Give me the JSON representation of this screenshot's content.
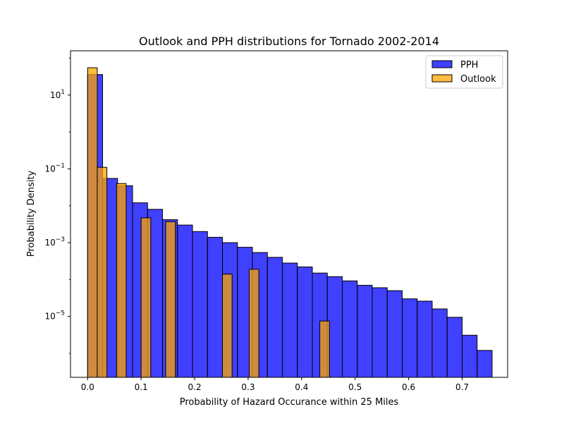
{
  "chart_data": {
    "type": "bar",
    "title": "Outlook and PPH distributions for Tornado 2002-2014",
    "xlabel": "Probability of Hazard Occurance within 25 Miles",
    "ylabel": "Probability Density",
    "xlim": [
      -0.032,
      0.785
    ],
    "ylim_log10": [
      -6.65,
      2.2
    ],
    "yscale": "log",
    "x_ticks": [
      0.0,
      0.1,
      0.2,
      0.3,
      0.4,
      0.5,
      0.6,
      0.7
    ],
    "x_tick_labels": [
      "0.0",
      "0.1",
      "0.2",
      "0.3",
      "0.4",
      "0.5",
      "0.6",
      "0.7"
    ],
    "y_ticks": [
      {
        "exp": 1,
        "mantissa": "10",
        "sup": "1"
      },
      {
        "exp": -1,
        "mantissa": "10",
        "sup": "−1"
      },
      {
        "exp": -3,
        "mantissa": "10",
        "sup": "−3"
      },
      {
        "exp": -5,
        "mantissa": "10",
        "sup": "−5"
      }
    ],
    "legend_position": "top-right",
    "series": [
      {
        "name": "PPH",
        "color": "#0000ff",
        "alpha": 0.75,
        "bin_width": 0.028,
        "bins": [
          {
            "x0": 0.0,
            "value": 36.0
          },
          {
            "x0": 0.028,
            "value": 0.055
          },
          {
            "x0": 0.056,
            "value": 0.035
          },
          {
            "x0": 0.084,
            "value": 0.012
          },
          {
            "x0": 0.112,
            "value": 0.008
          },
          {
            "x0": 0.14,
            "value": 0.0042
          },
          {
            "x0": 0.168,
            "value": 0.003
          },
          {
            "x0": 0.196,
            "value": 0.002
          },
          {
            "x0": 0.224,
            "value": 0.0014
          },
          {
            "x0": 0.252,
            "value": 0.001
          },
          {
            "x0": 0.28,
            "value": 0.00075
          },
          {
            "x0": 0.308,
            "value": 0.00054
          },
          {
            "x0": 0.336,
            "value": 0.0004
          },
          {
            "x0": 0.364,
            "value": 0.00028
          },
          {
            "x0": 0.392,
            "value": 0.00022
          },
          {
            "x0": 0.42,
            "value": 0.00015
          },
          {
            "x0": 0.448,
            "value": 0.00012
          },
          {
            "x0": 0.476,
            "value": 9.2e-05
          },
          {
            "x0": 0.504,
            "value": 7e-05
          },
          {
            "x0": 0.532,
            "value": 6e-05
          },
          {
            "x0": 0.56,
            "value": 5e-05
          },
          {
            "x0": 0.588,
            "value": 3e-05
          },
          {
            "x0": 0.616,
            "value": 2.6e-05
          },
          {
            "x0": 0.644,
            "value": 1.6e-05
          },
          {
            "x0": 0.672,
            "value": 9.5e-06
          },
          {
            "x0": 0.7,
            "value": 3.1e-06
          },
          {
            "x0": 0.728,
            "value": 1.2e-06
          }
        ]
      },
      {
        "name": "Outlook",
        "color": "#ffa500",
        "alpha": 0.75,
        "bin_width": 0.018,
        "bins": [
          {
            "x0": 0.0,
            "value": 55.0
          },
          {
            "x0": 0.018,
            "value": 0.11
          },
          {
            "x0": 0.054,
            "value": 0.04
          },
          {
            "x0": 0.1,
            "value": 0.0047
          },
          {
            "x0": 0.146,
            "value": 0.0037
          },
          {
            "x0": 0.252,
            "value": 0.00014
          },
          {
            "x0": 0.302,
            "value": 0.00019
          },
          {
            "x0": 0.434,
            "value": 7.5e-06
          }
        ]
      }
    ]
  }
}
